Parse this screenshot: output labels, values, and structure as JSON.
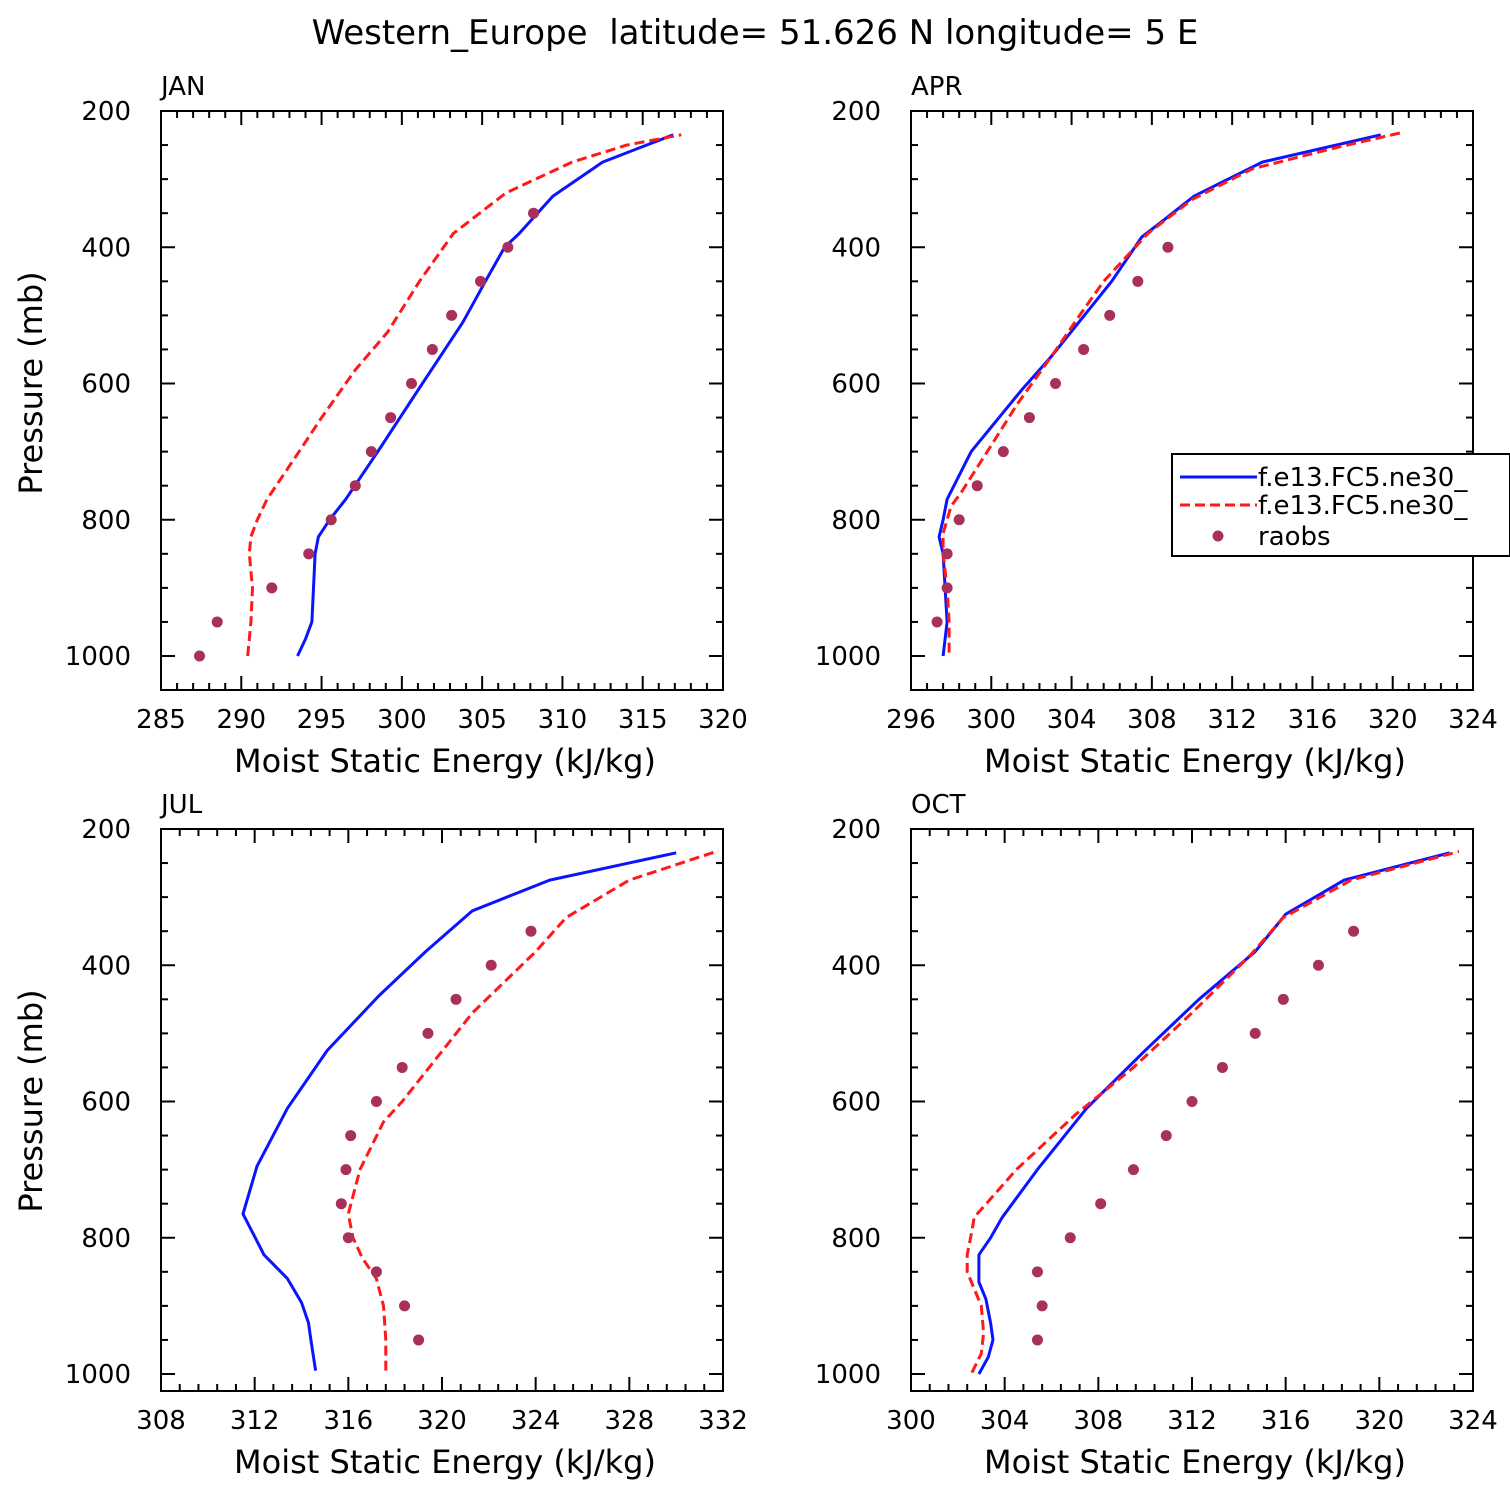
{
  "figure": {
    "title": "Western_Europe  latitude= 51.626 N longitude= 5 E"
  },
  "colors": {
    "model1": "#0a14ff",
    "model2": "#ff1a1a",
    "obs": "#a8305a"
  },
  "legend": {
    "entries": [
      "f.e13.FC5.ne30_",
      "f.e13.FC5.ne30_",
      "raobs"
    ]
  },
  "chart_data": [
    {
      "type": "line",
      "panel_label": "JAN",
      "xlabel": "Moist Static Energy (kJ/kg)",
      "ylabel": "Pressure (mb)",
      "xlim": [
        285,
        320
      ],
      "ylim": [
        1000,
        200
      ],
      "x_ticks": [
        285,
        290,
        295,
        300,
        305,
        310,
        315,
        320
      ],
      "y_ticks": [
        200,
        400,
        600,
        800,
        1000
      ],
      "series": [
        {
          "style": "solid",
          "points": [
            [
              293.5,
              1000
            ],
            [
              294.0,
              975
            ],
            [
              294.4,
              950
            ],
            [
              294.5,
              900
            ],
            [
              294.6,
              850
            ],
            [
              294.8,
              825
            ],
            [
              295.5,
              800
            ],
            [
              296.5,
              770
            ],
            [
              298.5,
              700
            ],
            [
              301.0,
              610
            ],
            [
              303.8,
              510
            ],
            [
              305.2,
              450
            ],
            [
              306.4,
              400
            ],
            [
              307.3,
              380
            ],
            [
              309.4,
              325
            ],
            [
              312.5,
              275
            ],
            [
              316.9,
              235
            ]
          ]
        },
        {
          "style": "dashed",
          "points": [
            [
              290.4,
              1000
            ],
            [
              290.6,
              950
            ],
            [
              290.7,
              900
            ],
            [
              290.5,
              850
            ],
            [
              290.6,
              825
            ],
            [
              291.0,
              800
            ],
            [
              291.6,
              770
            ],
            [
              293.6,
              700
            ],
            [
              295.0,
              650
            ],
            [
              297.1,
              580
            ],
            [
              299.1,
              525
            ],
            [
              301.1,
              450
            ],
            [
              303.2,
              380
            ],
            [
              306.5,
              320
            ],
            [
              310.6,
              275
            ],
            [
              314.0,
              250
            ],
            [
              317.4,
              235
            ]
          ]
        }
      ],
      "obs": [
        [
          287.4,
          1000
        ],
        [
          288.5,
          950
        ],
        [
          291.9,
          900
        ],
        [
          294.2,
          850
        ],
        [
          295.6,
          800
        ],
        [
          297.1,
          750
        ],
        [
          298.1,
          700
        ],
        [
          299.3,
          650
        ],
        [
          300.6,
          600
        ],
        [
          301.9,
          550
        ],
        [
          303.1,
          500
        ],
        [
          304.9,
          450
        ],
        [
          306.6,
          400
        ],
        [
          308.2,
          350
        ]
      ]
    },
    {
      "type": "line",
      "panel_label": "APR",
      "xlabel": "Moist Static Energy (kJ/kg)",
      "ylabel": "",
      "xlim": [
        296,
        324
      ],
      "ylim": [
        1000,
        200
      ],
      "x_ticks": [
        296,
        300,
        304,
        308,
        312,
        316,
        320,
        324
      ],
      "y_ticks": [
        200,
        400,
        600,
        800,
        1000
      ],
      "series": [
        {
          "style": "solid",
          "points": [
            [
              297.6,
              1000
            ],
            [
              297.8,
              950
            ],
            [
              297.7,
              900
            ],
            [
              297.6,
              850
            ],
            [
              297.4,
              825
            ],
            [
              297.6,
              800
            ],
            [
              297.8,
              770
            ],
            [
              299.0,
              700
            ],
            [
              301.5,
              610
            ],
            [
              303.0,
              560
            ],
            [
              306.0,
              450
            ],
            [
              307.5,
              385
            ],
            [
              308.6,
              360
            ],
            [
              310.1,
              325
            ],
            [
              313.5,
              275
            ],
            [
              319.4,
              235
            ]
          ]
        },
        {
          "style": "dashed",
          "points": [
            [
              297.9,
              995
            ],
            [
              297.9,
              950
            ],
            [
              297.8,
              900
            ],
            [
              297.6,
              850
            ],
            [
              297.6,
              820
            ],
            [
              298.0,
              780
            ],
            [
              298.5,
              760
            ],
            [
              299.8,
              700
            ],
            [
              301.3,
              630
            ],
            [
              303.0,
              560
            ],
            [
              304.4,
              500
            ],
            [
              305.6,
              450
            ],
            [
              307.8,
              380
            ],
            [
              310.0,
              330
            ],
            [
              313.0,
              285
            ],
            [
              317.0,
              255
            ],
            [
              320.4,
              232
            ]
          ]
        }
      ],
      "obs": [
        [
          297.3,
          950
        ],
        [
          297.8,
          900
        ],
        [
          297.8,
          850
        ],
        [
          298.4,
          800
        ],
        [
          299.3,
          750
        ],
        [
          300.6,
          700
        ],
        [
          301.9,
          650
        ],
        [
          303.2,
          600
        ],
        [
          304.6,
          550
        ],
        [
          305.9,
          500
        ],
        [
          307.3,
          450
        ],
        [
          308.8,
          400
        ]
      ]
    },
    {
      "type": "line",
      "panel_label": "JUL",
      "xlabel": "Moist Static Energy (kJ/kg)",
      "ylabel": "Pressure (mb)",
      "xlim": [
        308,
        332
      ],
      "ylim": [
        1000,
        200
      ],
      "x_ticks": [
        308,
        312,
        316,
        320,
        324,
        328,
        332
      ],
      "y_ticks": [
        200,
        400,
        600,
        800,
        1000
      ],
      "series": [
        {
          "style": "solid",
          "points": [
            [
              314.6,
              995
            ],
            [
              314.4,
              950
            ],
            [
              314.3,
              925
            ],
            [
              314.0,
              895
            ],
            [
              313.4,
              860
            ],
            [
              312.4,
              825
            ],
            [
              311.5,
              765
            ],
            [
              312.1,
              695
            ],
            [
              313.4,
              610
            ],
            [
              315.1,
              525
            ],
            [
              317.3,
              445
            ],
            [
              319.3,
              380
            ],
            [
              321.3,
              320
            ],
            [
              324.6,
              275
            ],
            [
              330.0,
              235
            ]
          ]
        },
        {
          "style": "dashed",
          "points": [
            [
              317.6,
              995
            ],
            [
              317.6,
              950
            ],
            [
              317.5,
              900
            ],
            [
              317.2,
              860
            ],
            [
              316.6,
              830
            ],
            [
              316.2,
              800
            ],
            [
              316.0,
              765
            ],
            [
              316.5,
              700
            ],
            [
              317.5,
              630
            ],
            [
              318.3,
              600
            ],
            [
              321.3,
              470
            ],
            [
              324.0,
              380
            ],
            [
              325.3,
              330
            ],
            [
              328.0,
              275
            ],
            [
              331.8,
              232
            ]
          ]
        }
      ],
      "obs": [
        [
          319.0,
          950
        ],
        [
          318.4,
          900
        ],
        [
          317.2,
          850
        ],
        [
          316.0,
          800
        ],
        [
          315.7,
          750
        ],
        [
          315.9,
          700
        ],
        [
          316.1,
          650
        ],
        [
          317.2,
          600
        ],
        [
          318.3,
          550
        ],
        [
          319.4,
          500
        ],
        [
          320.6,
          450
        ],
        [
          322.1,
          400
        ],
        [
          323.8,
          350
        ]
      ]
    },
    {
      "type": "line",
      "panel_label": "OCT",
      "xlabel": "Moist Static Energy (kJ/kg)",
      "ylabel": "",
      "xlim": [
        300,
        324
      ],
      "ylim": [
        1000,
        200
      ],
      "x_ticks": [
        300,
        304,
        308,
        312,
        316,
        320,
        324
      ],
      "y_ticks": [
        200,
        400,
        600,
        800,
        1000
      ],
      "series": [
        {
          "style": "solid",
          "points": [
            [
              302.9,
              1000
            ],
            [
              303.3,
              975
            ],
            [
              303.5,
              950
            ],
            [
              303.4,
              925
            ],
            [
              303.2,
              890
            ],
            [
              302.9,
              865
            ],
            [
              302.9,
              825
            ],
            [
              303.4,
              800
            ],
            [
              303.9,
              770
            ],
            [
              305.4,
              700
            ],
            [
              307.5,
              610
            ],
            [
              310.0,
              525
            ],
            [
              312.3,
              450
            ],
            [
              314.7,
              380
            ],
            [
              316.0,
              325
            ],
            [
              318.5,
              275
            ],
            [
              323.0,
              235
            ]
          ]
        },
        {
          "style": "dashed",
          "points": [
            [
              302.6,
              998
            ],
            [
              303.0,
              970
            ],
            [
              303.1,
              940
            ],
            [
              303.0,
              900
            ],
            [
              302.7,
              875
            ],
            [
              302.4,
              850
            ],
            [
              302.4,
              825
            ],
            [
              302.6,
              790
            ],
            [
              302.7,
              770
            ],
            [
              304.5,
              700
            ],
            [
              307.0,
              620
            ],
            [
              309.5,
              550
            ],
            [
              312.0,
              470
            ],
            [
              314.5,
              385
            ],
            [
              315.9,
              330
            ],
            [
              318.8,
              275
            ],
            [
              323.4,
              233
            ]
          ]
        }
      ],
      "obs": [
        [
          305.4,
          950
        ],
        [
          305.6,
          900
        ],
        [
          305.4,
          850
        ],
        [
          306.8,
          800
        ],
        [
          308.1,
          750
        ],
        [
          309.5,
          700
        ],
        [
          310.9,
          650
        ],
        [
          312.0,
          600
        ],
        [
          313.3,
          550
        ],
        [
          314.7,
          500
        ],
        [
          315.9,
          450
        ],
        [
          317.4,
          400
        ],
        [
          318.9,
          350
        ]
      ]
    }
  ]
}
